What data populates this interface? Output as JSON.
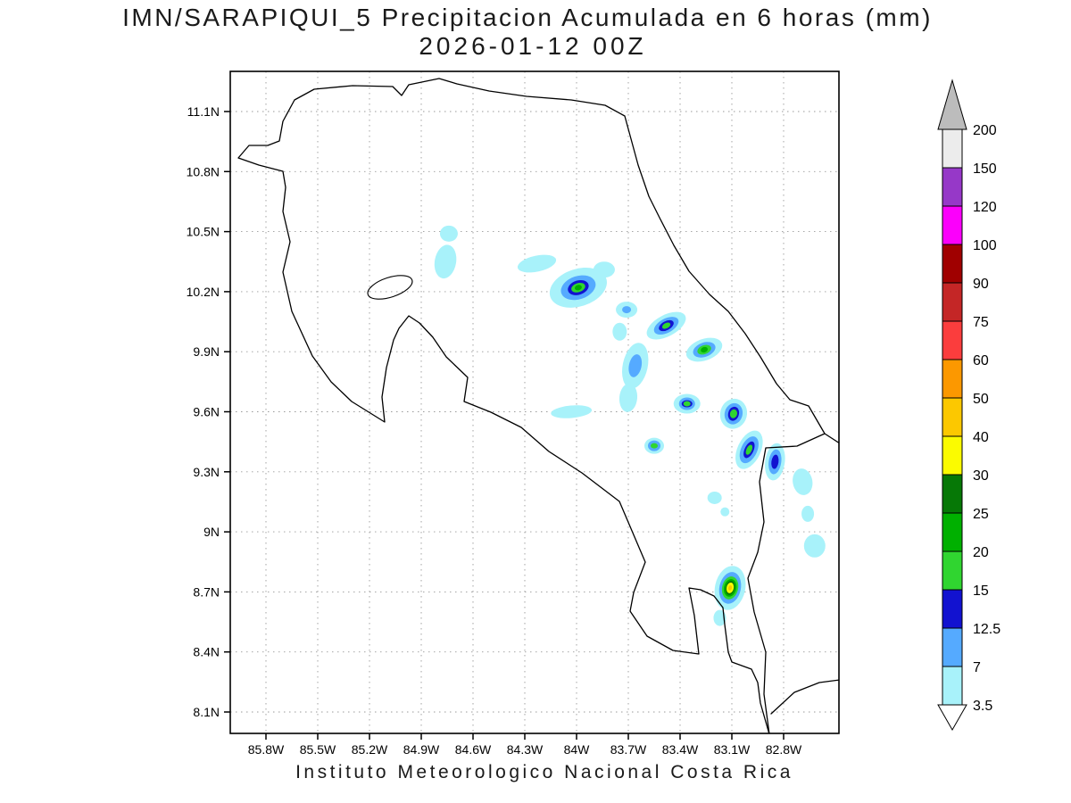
{
  "title": {
    "line1": "IMN/SARAPIQUI_5 Precipitacion Acumulada en 6 horas (mm)",
    "line2": "2026-01-12 00Z"
  },
  "footer": "Instituto Meteorologico Nacional Costa Rica",
  "map": {
    "lat_tick_labels": [
      "11.1N",
      "10.8N",
      "10.5N",
      "10.2N",
      "9.9N",
      "9.6N",
      "9.3N",
      "9N",
      "8.7N",
      "8.4N",
      "8.1N"
    ],
    "lon_tick_labels": [
      "85.8W",
      "85.5W",
      "85.2W",
      "84.9W",
      "84.6W",
      "84.3W",
      "84W",
      "83.7W",
      "83.4W",
      "83.1W",
      "82.8W"
    ]
  },
  "colorbar": {
    "boundary_labels_top_to_bottom": [
      "200",
      "150",
      "120",
      "100",
      "90",
      "75",
      "60",
      "50",
      "40",
      "30",
      "25",
      "20",
      "15",
      "12.5",
      "7",
      "3.5"
    ],
    "segment_colors_top_to_bottom": [
      "#ececec",
      "#9638c8",
      "#fb00fb",
      "#a00000",
      "#c42626",
      "#fb3d3d",
      "#fc9800",
      "#fcc800",
      "#fbfb00",
      "#067806",
      "#00b000",
      "#30d530",
      "#1212d0",
      "#55aaff",
      "#a8f2fa"
    ],
    "arrow_top_color": "#bcbcbc",
    "arrow_bottom_color": "#ffffff"
  },
  "chart_data": {
    "type": "map-shaded-contour",
    "model": "IMN/SARAPIQUI_5",
    "variable": "Precipitacion Acumulada en 6 horas (mm)",
    "valid_time": "2026-01-12 00Z",
    "lon_range_w": [
      86.0,
      82.5
    ],
    "lat_range_n": [
      8.0,
      11.3
    ],
    "levels_mm": [
      3.5,
      7,
      12.5,
      15,
      20,
      25,
      30,
      40,
      50,
      60,
      75,
      90,
      100,
      120,
      150,
      200
    ],
    "features": [
      {
        "lon_w": 84.74,
        "lat_n": 10.49,
        "rot": 0,
        "layers": [
          {
            "level": 3.5,
            "rx": 10,
            "ry": 9
          }
        ]
      },
      {
        "lon_w": 84.76,
        "lat_n": 10.35,
        "rot": 10,
        "layers": [
          {
            "level": 3.5,
            "rx": 12,
            "ry": 19
          }
        ]
      },
      {
        "lon_w": 84.23,
        "lat_n": 10.34,
        "rot": -12,
        "layers": [
          {
            "level": 3.5,
            "rx": 22,
            "ry": 9
          }
        ]
      },
      {
        "lon_w": 83.99,
        "lat_n": 10.22,
        "rot": -18,
        "layers": [
          {
            "level": 3.5,
            "rx": 33,
            "ry": 21
          },
          {
            "level": 7,
            "rx": 20,
            "ry": 13
          },
          {
            "level": 12.5,
            "rx": 12,
            "ry": 8
          },
          {
            "level": 15,
            "rx": 8,
            "ry": 5
          },
          {
            "level": 20,
            "rx": 4,
            "ry": 3
          }
        ]
      },
      {
        "lon_w": 83.84,
        "lat_n": 10.31,
        "rot": 0,
        "layers": [
          {
            "level": 3.5,
            "rx": 12,
            "ry": 9
          }
        ]
      },
      {
        "lon_w": 83.71,
        "lat_n": 10.11,
        "rot": 0,
        "layers": [
          {
            "level": 3.5,
            "rx": 12,
            "ry": 9
          },
          {
            "level": 7,
            "rx": 5,
            "ry": 4
          }
        ]
      },
      {
        "lon_w": 83.75,
        "lat_n": 10.0,
        "rot": 0,
        "layers": [
          {
            "level": 3.5,
            "rx": 8,
            "ry": 10
          }
        ]
      },
      {
        "lon_w": 83.48,
        "lat_n": 10.03,
        "rot": -28,
        "layers": [
          {
            "level": 3.5,
            "rx": 24,
            "ry": 12
          },
          {
            "level": 7,
            "rx": 15,
            "ry": 8
          },
          {
            "level": 12.5,
            "rx": 9,
            "ry": 5
          },
          {
            "level": 15,
            "rx": 5,
            "ry": 3
          }
        ]
      },
      {
        "lon_w": 83.26,
        "lat_n": 9.91,
        "rot": -20,
        "layers": [
          {
            "level": 3.5,
            "rx": 21,
            "ry": 12
          },
          {
            "level": 7,
            "rx": 13,
            "ry": 8
          },
          {
            "level": 15,
            "rx": 8,
            "ry": 5
          },
          {
            "level": 20,
            "rx": 4,
            "ry": 3
          }
        ]
      },
      {
        "lon_w": 83.66,
        "lat_n": 9.83,
        "rot": 12,
        "layers": [
          {
            "level": 3.5,
            "rx": 14,
            "ry": 26
          },
          {
            "level": 7,
            "rx": 7,
            "ry": 13
          }
        ]
      },
      {
        "lon_w": 83.7,
        "lat_n": 9.67,
        "rot": 5,
        "layers": [
          {
            "level": 3.5,
            "rx": 10,
            "ry": 16
          }
        ]
      },
      {
        "lon_w": 84.03,
        "lat_n": 9.6,
        "rot": -5,
        "layers": [
          {
            "level": 3.5,
            "rx": 23,
            "ry": 7
          }
        ]
      },
      {
        "lon_w": 83.36,
        "lat_n": 9.64,
        "rot": 0,
        "layers": [
          {
            "level": 3.5,
            "rx": 15,
            "ry": 11
          },
          {
            "level": 7,
            "rx": 9,
            "ry": 7
          },
          {
            "level": 12.5,
            "rx": 6,
            "ry": 4
          },
          {
            "level": 15,
            "rx": 4,
            "ry": 3
          }
        ]
      },
      {
        "lon_w": 83.09,
        "lat_n": 9.59,
        "rot": 15,
        "layers": [
          {
            "level": 3.5,
            "rx": 15,
            "ry": 17
          },
          {
            "level": 7,
            "rx": 10,
            "ry": 12
          },
          {
            "level": 12.5,
            "rx": 6,
            "ry": 8
          },
          {
            "level": 15,
            "rx": 4,
            "ry": 5
          }
        ]
      },
      {
        "lon_w": 83.55,
        "lat_n": 9.43,
        "rot": 0,
        "layers": [
          {
            "level": 3.5,
            "rx": 11,
            "ry": 9
          },
          {
            "level": 7,
            "rx": 7,
            "ry": 6
          },
          {
            "level": 15,
            "rx": 4,
            "ry": 3
          }
        ]
      },
      {
        "lon_w": 83.0,
        "lat_n": 9.41,
        "rot": 25,
        "layers": [
          {
            "level": 3.5,
            "rx": 13,
            "ry": 23
          },
          {
            "level": 7,
            "rx": 9,
            "ry": 16
          },
          {
            "level": 12.5,
            "rx": 5,
            "ry": 10
          },
          {
            "level": 15,
            "rx": 3,
            "ry": 6
          }
        ]
      },
      {
        "lon_w": 82.85,
        "lat_n": 9.35,
        "rot": 8,
        "layers": [
          {
            "level": 3.5,
            "rx": 11,
            "ry": 21
          },
          {
            "level": 7,
            "rx": 7,
            "ry": 14
          },
          {
            "level": 12.5,
            "rx": 4,
            "ry": 8
          }
        ]
      },
      {
        "lon_w": 82.69,
        "lat_n": 9.25,
        "rot": -10,
        "layers": [
          {
            "level": 3.5,
            "rx": 11,
            "ry": 15
          }
        ]
      },
      {
        "lon_w": 82.66,
        "lat_n": 9.09,
        "rot": 0,
        "layers": [
          {
            "level": 3.5,
            "rx": 7,
            "ry": 9
          }
        ]
      },
      {
        "lon_w": 83.2,
        "lat_n": 9.17,
        "rot": 0,
        "layers": [
          {
            "level": 3.5,
            "rx": 8,
            "ry": 7
          }
        ]
      },
      {
        "lon_w": 83.14,
        "lat_n": 9.1,
        "rot": 0,
        "layers": [
          {
            "level": 3.5,
            "rx": 5,
            "ry": 5
          }
        ]
      },
      {
        "lon_w": 82.62,
        "lat_n": 8.93,
        "rot": 0,
        "layers": [
          {
            "level": 3.5,
            "rx": 12,
            "ry": 13
          }
        ]
      },
      {
        "lon_w": 83.11,
        "lat_n": 8.72,
        "rot": 12,
        "layers": [
          {
            "level": 3.5,
            "rx": 17,
            "ry": 25
          },
          {
            "level": 7,
            "rx": 12,
            "ry": 18
          },
          {
            "level": 15,
            "rx": 9,
            "ry": 13
          },
          {
            "level": 20,
            "rx": 7,
            "ry": 10
          },
          {
            "level": 25,
            "rx": 5,
            "ry": 8
          },
          {
            "level": 30,
            "rx": 4,
            "ry": 6
          },
          {
            "level": 40,
            "rx": 2,
            "ry": 3
          }
        ]
      },
      {
        "lon_w": 83.17,
        "lat_n": 8.57,
        "rot": 0,
        "layers": [
          {
            "level": 3.5,
            "rx": 7,
            "ry": 9
          }
        ]
      }
    ]
  }
}
